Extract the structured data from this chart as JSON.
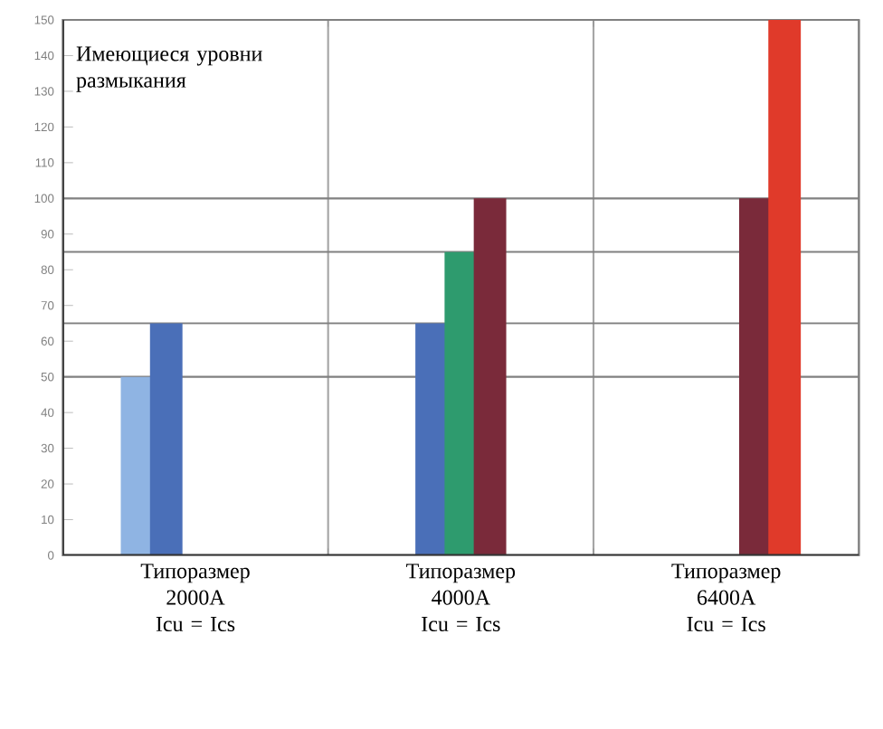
{
  "chart_data": {
    "type": "bar",
    "categories": [
      "Типоразмер 2000A Icu = Ics",
      "Типоразмер 4000A Icu = Ics",
      "Типоразмер 6400A Icu = Ics"
    ],
    "series": [
      {
        "color": "#8fb4e3",
        "values": [
          50,
          null,
          null
        ]
      },
      {
        "color": "#4a6fb8",
        "values": [
          65,
          65,
          null
        ]
      },
      {
        "color": "#2e9b6e",
        "values": [
          null,
          85,
          null
        ]
      },
      {
        "color": "#7a2a3a",
        "values": [
          null,
          100,
          100
        ]
      },
      {
        "color": "#e03a2a",
        "values": [
          null,
          null,
          150
        ]
      }
    ],
    "ylim": [
      0,
      150
    ],
    "yticks": [
      0,
      10,
      20,
      30,
      40,
      50,
      60,
      70,
      80,
      90,
      100,
      110,
      120,
      130,
      140,
      150
    ],
    "ref_lines": [
      {
        "axis": "y",
        "value": 50,
        "color": "#808080"
      },
      {
        "axis": "y",
        "value": 65,
        "color": "#808080"
      },
      {
        "axis": "y",
        "value": 85,
        "color": "#808080"
      },
      {
        "axis": "y",
        "value": 100,
        "color": "#808080"
      }
    ],
    "annotations": [
      "Имеющиеся уровни размыкания"
    ],
    "grid": "x"
  }
}
